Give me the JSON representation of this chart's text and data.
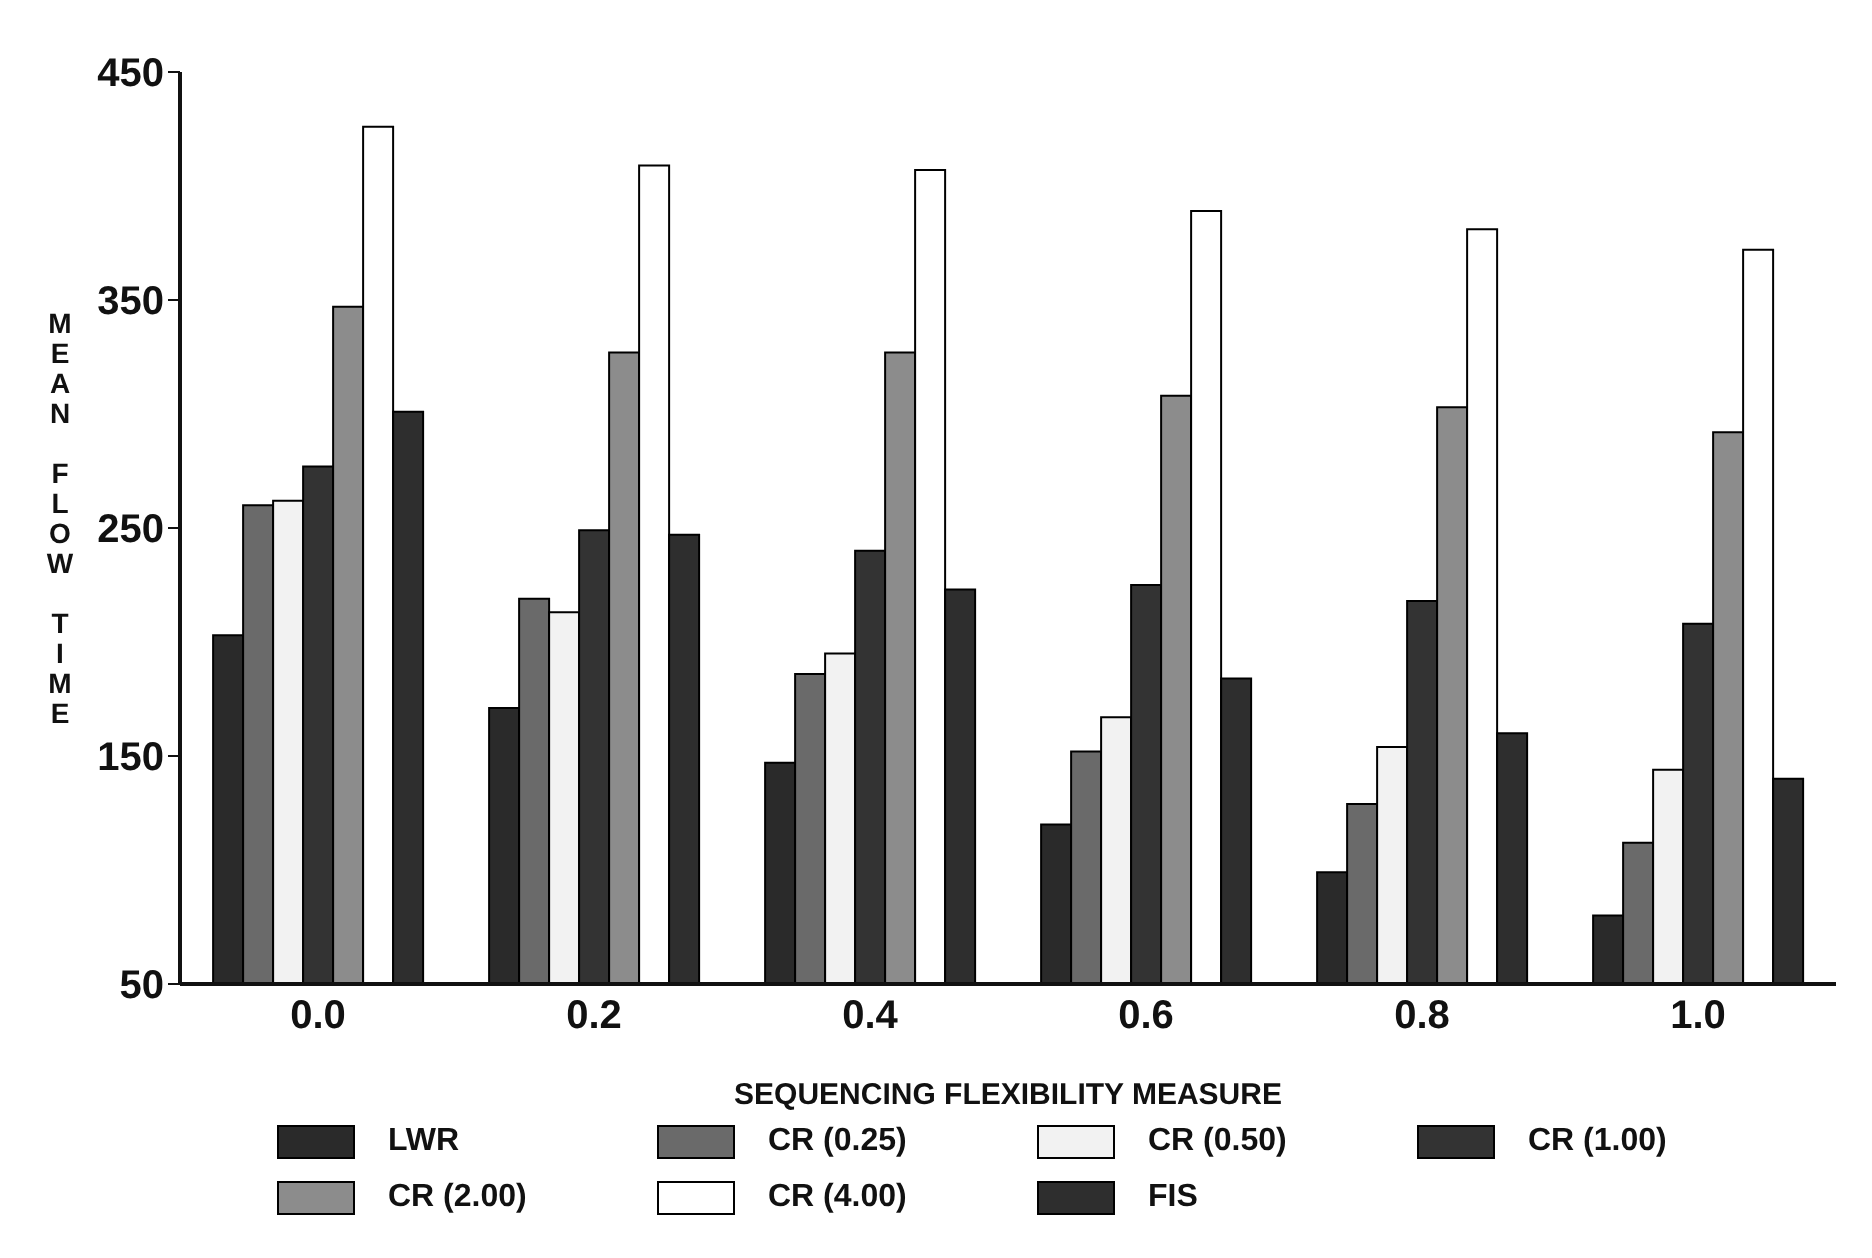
{
  "chart_data": {
    "type": "bar",
    "xlabel": "SEQUENCING FLEXIBILITY MEASURE",
    "ylabel": "MEAN FLOW TIME",
    "categories": [
      "0.0",
      "0.2",
      "0.4",
      "0.6",
      "0.8",
      "1.0"
    ],
    "series": [
      {
        "name": "LWR",
        "color": "#2a2a2a",
        "values": [
          203,
          171,
          147,
          120,
          99,
          80
        ]
      },
      {
        "name": "CR (0.25)",
        "color": "#6a6a6a",
        "values": [
          260,
          219,
          186,
          152,
          129,
          112
        ]
      },
      {
        "name": "CR (0.50)",
        "color": "#f2f2f2",
        "values": [
          262,
          213,
          195,
          167,
          154,
          144
        ]
      },
      {
        "name": "CR (1.00)",
        "color": "#333333",
        "values": [
          277,
          249,
          240,
          225,
          218,
          208
        ]
      },
      {
        "name": "CR (2.00)",
        "color": "#8c8c8c",
        "values": [
          347,
          327,
          327,
          308,
          303,
          292
        ]
      },
      {
        "name": "CR (4.00)",
        "color": "#ffffff",
        "values": [
          426,
          409,
          407,
          389,
          381,
          372
        ]
      },
      {
        "name": "FIS",
        "color": "#2e2e2e",
        "values": [
          301,
          247,
          223,
          184,
          160,
          140
        ]
      }
    ],
    "ylim": [
      50,
      450
    ],
    "yticks": [
      50,
      150,
      250,
      350,
      450
    ],
    "grid": false,
    "legend": "bottom"
  }
}
